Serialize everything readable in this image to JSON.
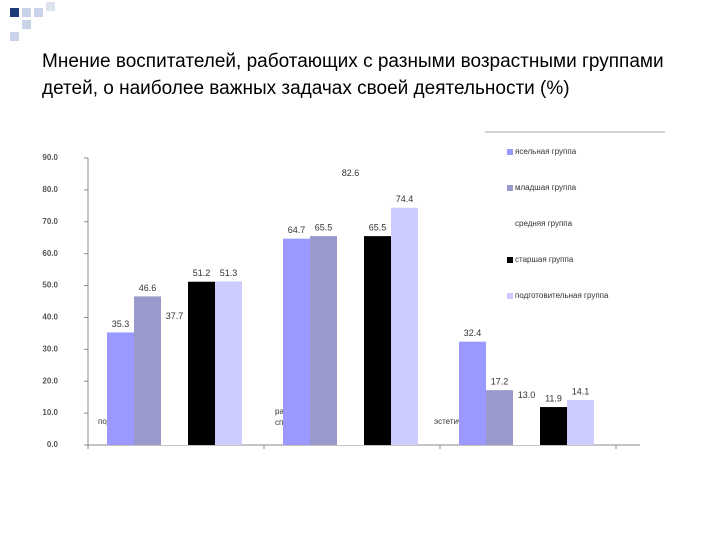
{
  "chart_data": {
    "type": "bar",
    "title": "Мнение воспитателей, работающих с разными возрастными группами детей, о наиболее важных задачах своей деятельности (%)",
    "categories": [
      "подготовка к школе",
      "развитие индивидуальных способностей",
      "эстетическое воспитание"
    ],
    "series": [
      {
        "name": "ясельная группа",
        "color": "#9999ff",
        "values": [
          35.3,
          64.7,
          32.4
        ]
      },
      {
        "name": "младшая группа",
        "color": "#9999cc",
        "values": [
          46.6,
          65.5,
          17.2
        ]
      },
      {
        "name": "средняя группа",
        "color": "#ffffff",
        "values": [
          37.7,
          82.6,
          13.0
        ],
        "value_labels": [
          "37.7",
          "82.6",
          "13.0"
        ]
      },
      {
        "name": "старшая группа",
        "color": "#000000",
        "values": [
          51.2,
          65.5,
          11.9
        ]
      },
      {
        "name": "подготовительная группа",
        "color": "#ccccff",
        "values": [
          51.3,
          74.4,
          14.1
        ]
      }
    ],
    "ylim": [
      0,
      90
    ],
    "yticks": [
      {
        "value": 0,
        "label": "0.0"
      },
      {
        "value": 10,
        "label": "10.0"
      },
      {
        "value": 20,
        "label": "20.0"
      },
      {
        "value": 30,
        "label": "30.0"
      },
      {
        "value": 40,
        "label": "40.0"
      },
      {
        "value": 50,
        "label": "50.0"
      },
      {
        "value": 60,
        "label": "60.0"
      },
      {
        "value": 70,
        "label": "70.0"
      },
      {
        "value": 80,
        "label": "80.0"
      },
      {
        "value": 90,
        "label": "90.0"
      }
    ],
    "legend": "right"
  }
}
